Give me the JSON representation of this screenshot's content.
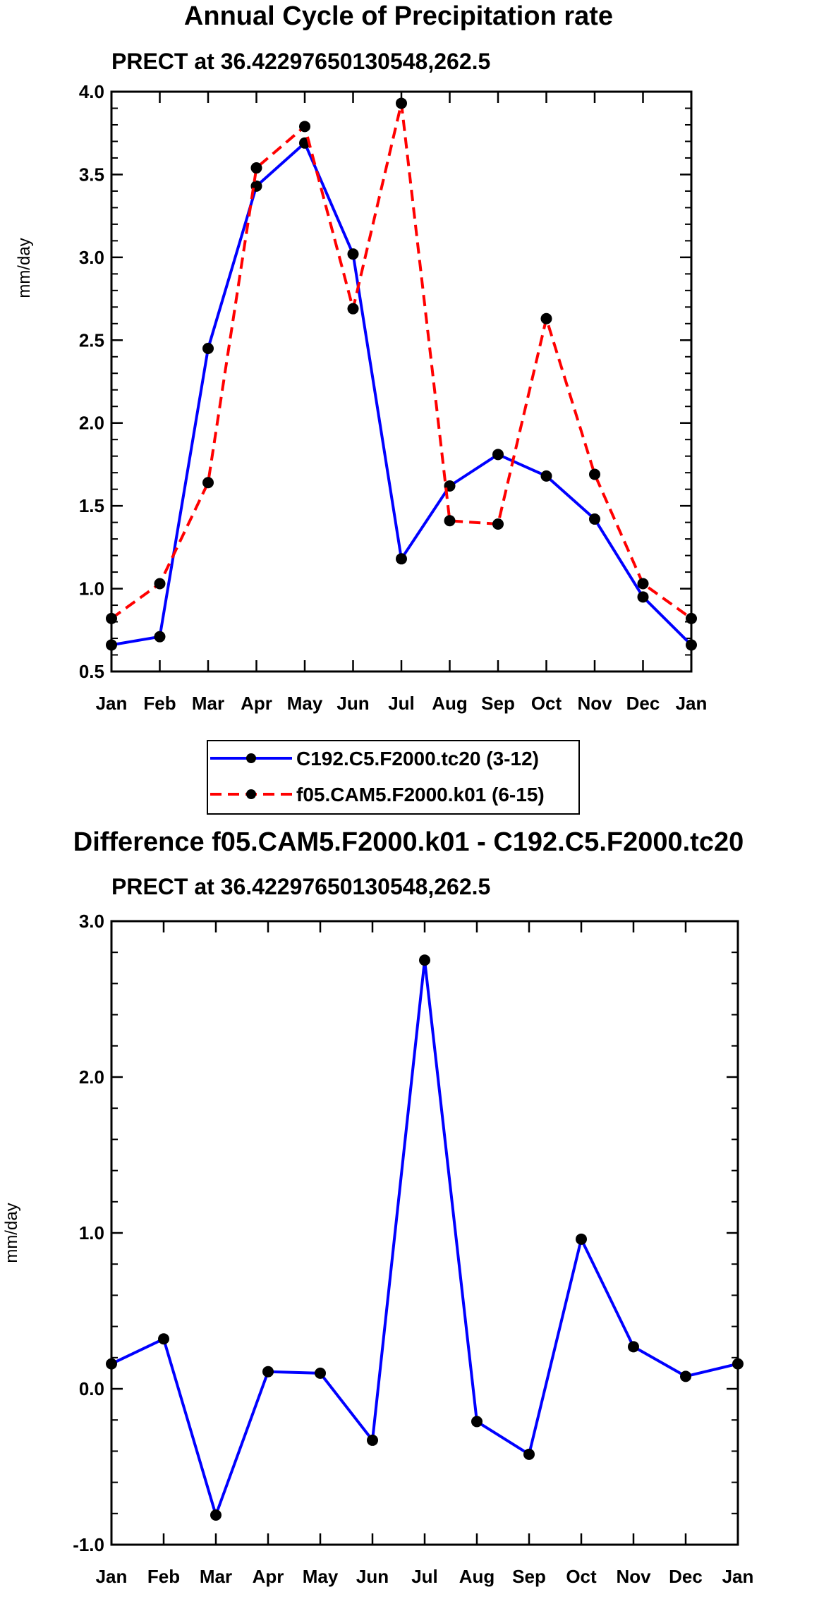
{
  "chart_data": [
    {
      "type": "line",
      "title": "Annual Cycle of Precipitation rate",
      "subtitle": "PRECT at 36.42297650130548,262.5",
      "xlabel": "",
      "ylabel": "mm/day",
      "categories": [
        "Jan",
        "Feb",
        "Mar",
        "Apr",
        "May",
        "Jun",
        "Jul",
        "Aug",
        "Sep",
        "Oct",
        "Nov",
        "Dec",
        "Jan"
      ],
      "ylim": [
        0.5,
        4.0
      ],
      "yticks": [
        "0.5",
        "1.0",
        "1.5",
        "2.0",
        "2.5",
        "3.0",
        "3.5",
        "4.0"
      ],
      "series": [
        {
          "name": "C192.C5.F2000.tc20 (3-12)",
          "color": "#0000ff",
          "dash": "solid",
          "values": [
            0.66,
            0.71,
            2.45,
            3.43,
            3.69,
            3.02,
            1.18,
            1.62,
            1.81,
            1.68,
            1.42,
            0.95,
            0.66
          ]
        },
        {
          "name": "f05.CAM5.F2000.k01 (6-15)",
          "color": "#ff0000",
          "dash": "dashed",
          "values": [
            0.82,
            1.03,
            1.64,
            3.54,
            3.79,
            2.69,
            3.93,
            1.41,
            1.39,
            2.63,
            1.69,
            1.03,
            0.82
          ]
        }
      ],
      "legend": "below"
    },
    {
      "type": "line",
      "title": "Difference f05.CAM5.F2000.k01 - C192.C5.F2000.tc20",
      "subtitle": "PRECT at 36.42297650130548,262.5",
      "xlabel": "",
      "ylabel": "mm/day",
      "categories": [
        "Jan",
        "Feb",
        "Mar",
        "Apr",
        "May",
        "Jun",
        "Jul",
        "Aug",
        "Sep",
        "Oct",
        "Nov",
        "Dec",
        "Jan"
      ],
      "ylim": [
        -1.0,
        3.0
      ],
      "yticks": [
        "-1.0",
        "0.0",
        "1.0",
        "2.0",
        "3.0"
      ],
      "series": [
        {
          "name": "difference",
          "color": "#0000ff",
          "dash": "solid",
          "values": [
            0.16,
            0.32,
            -0.81,
            0.11,
            0.1,
            -0.33,
            2.75,
            -0.21,
            -0.42,
            0.96,
            0.27,
            0.08,
            0.16
          ]
        }
      ]
    }
  ]
}
